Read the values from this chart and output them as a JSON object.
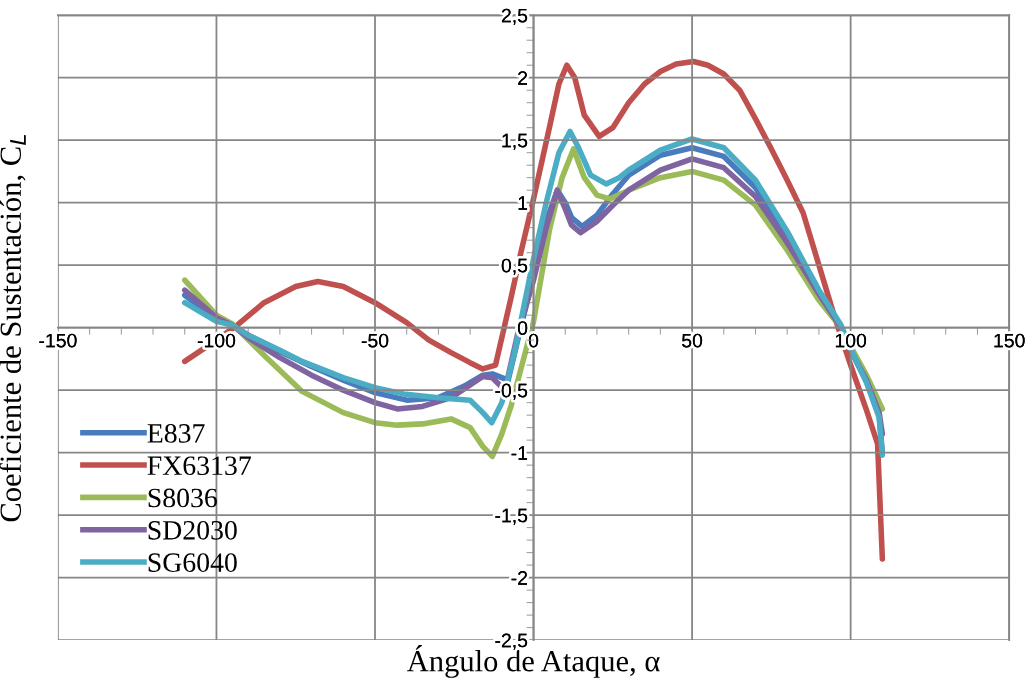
{
  "chart_data": {
    "type": "line",
    "xlabel": "Ángulo de Ataque, α",
    "ylabel": "Coeficiente de Sustentación, C$_{L}$",
    "xlim": [
      -150,
      150
    ],
    "xticks": [
      -150,
      -100,
      -50,
      0,
      50,
      100,
      150
    ],
    "ylim": [
      -2.5,
      2.5
    ],
    "yticks": [
      {
        "value": -2.5,
        "label": "-2,5"
      },
      {
        "value": -2,
        "label": "-2"
      },
      {
        "value": -1.5,
        "label": "-1,5"
      },
      {
        "value": -1,
        "label": "-1"
      },
      {
        "value": -0.5,
        "label": "-0,5"
      },
      {
        "value": 0,
        "label": "0"
      },
      {
        "value": 0.5,
        "label": "0,5"
      },
      {
        "value": 1,
        "label": "1"
      },
      {
        "value": 1.5,
        "label": "1,5"
      },
      {
        "value": 2,
        "label": "2"
      },
      {
        "value": 2.5,
        "label": "2,5"
      }
    ],
    "grid": true,
    "legend": "lower left",
    "line_style": "solid",
    "series": [
      {
        "name": "E837",
        "color": "#4a7bbd",
        "x": [
          -110,
          -100,
          -95,
          -90,
          -80,
          -70,
          -60,
          -50,
          -40,
          -30,
          -22,
          -16,
          -13,
          -8,
          -5,
          0,
          4,
          7.5,
          10,
          12,
          15.3,
          20,
          25,
          30,
          40,
          50,
          60,
          70,
          80,
          90,
          97,
          100,
          105,
          109,
          110
        ],
        "values": [
          0.26,
          0.07,
          0.02,
          -0.06,
          -0.19,
          -0.31,
          -0.42,
          -0.52,
          -0.58,
          -0.56,
          -0.47,
          -0.38,
          -0.37,
          -0.42,
          -0.1,
          0.42,
          0.85,
          1.1,
          1.0,
          0.88,
          0.81,
          0.9,
          1.07,
          1.22,
          1.38,
          1.44,
          1.37,
          1.12,
          0.72,
          0.28,
          0.0,
          -0.18,
          -0.43,
          -0.7,
          -1.0
        ]
      },
      {
        "name": "FX63137",
        "color": "#c0504d",
        "x": [
          -110,
          -100,
          -93,
          -85,
          -75,
          -68,
          -60,
          -50,
          -40,
          -33,
          -26,
          -20,
          -16,
          -12,
          -10,
          -7,
          -4,
          0,
          5,
          8,
          10.5,
          13,
          16,
          20.7,
          25,
          30,
          35,
          40,
          45,
          50.5,
          55,
          60,
          65,
          70,
          75,
          80,
          85,
          90,
          95,
          100,
          105,
          108.5,
          110
        ],
        "values": [
          -0.27,
          -0.1,
          0.03,
          0.2,
          0.33,
          0.37,
          0.33,
          0.2,
          0.04,
          -0.1,
          -0.2,
          -0.28,
          -0.33,
          -0.3,
          -0.08,
          0.25,
          0.6,
          1.03,
          1.6,
          1.95,
          2.1,
          2.0,
          1.7,
          1.53,
          1.6,
          1.8,
          1.95,
          2.05,
          2.11,
          2.13,
          2.1,
          2.03,
          1.9,
          1.67,
          1.43,
          1.18,
          0.92,
          0.5,
          0.08,
          -0.3,
          -0.66,
          -0.93,
          -1.85
        ]
      },
      {
        "name": "S8036",
        "color": "#9bbb59",
        "x": [
          -110,
          -100,
          -95,
          -85,
          -73,
          -60,
          -50,
          -43,
          -35,
          -26,
          -20,
          -16,
          -13,
          -10,
          -7,
          -2,
          0,
          5,
          9,
          12.6,
          16,
          20,
          24,
          30,
          40,
          50,
          60,
          70,
          80,
          90,
          97,
          100,
          105,
          110
        ],
        "values": [
          0.38,
          0.1,
          0.03,
          -0.22,
          -0.51,
          -0.68,
          -0.76,
          -0.78,
          -0.77,
          -0.73,
          -0.8,
          -0.95,
          -1.03,
          -0.85,
          -0.62,
          -0.14,
          0.05,
          0.78,
          1.2,
          1.43,
          1.2,
          1.06,
          1.03,
          1.1,
          1.2,
          1.25,
          1.18,
          0.98,
          0.62,
          0.22,
          0.0,
          -0.15,
          -0.38,
          -0.65
        ]
      },
      {
        "name": "SD2030",
        "color": "#8064a2",
        "x": [
          -110,
          -100,
          -95,
          -90,
          -80,
          -70,
          -60,
          -50,
          -43,
          -35,
          -26,
          -16,
          -13,
          -9,
          -5,
          0,
          4,
          7.5,
          10,
          12,
          14.8,
          20,
          25,
          30,
          40,
          50,
          60,
          70,
          80,
          90,
          97,
          100,
          105,
          109,
          110
        ],
        "values": [
          0.3,
          0.08,
          0.02,
          -0.08,
          -0.24,
          -0.38,
          -0.5,
          -0.6,
          -0.65,
          -0.63,
          -0.56,
          -0.39,
          -0.4,
          -0.5,
          -0.05,
          0.38,
          0.8,
          1.1,
          0.95,
          0.82,
          0.76,
          0.85,
          0.98,
          1.1,
          1.26,
          1.35,
          1.28,
          1.05,
          0.68,
          0.27,
          0.0,
          -0.18,
          -0.42,
          -0.68,
          -0.85
        ]
      },
      {
        "name": "SG6040",
        "color": "#4bacc6",
        "x": [
          -110,
          -100,
          -95,
          -90,
          -80,
          -73,
          -60,
          -50,
          -41,
          -30,
          -20,
          -16,
          -13.2,
          -10,
          -6,
          -4,
          0,
          4,
          8,
          11.5,
          14,
          18,
          22.9,
          27,
          30,
          40,
          50,
          60,
          70,
          80,
          90,
          97,
          100,
          105,
          109,
          110
        ],
        "values": [
          0.2,
          0.05,
          0.02,
          -0.06,
          -0.18,
          -0.27,
          -0.4,
          -0.48,
          -0.53,
          -0.56,
          -0.58,
          -0.68,
          -0.76,
          -0.6,
          -0.2,
          0.05,
          0.55,
          1.0,
          1.4,
          1.57,
          1.45,
          1.22,
          1.15,
          1.2,
          1.26,
          1.42,
          1.51,
          1.44,
          1.18,
          0.77,
          0.3,
          0.02,
          -0.17,
          -0.44,
          -0.72,
          -1.02
        ]
      }
    ]
  }
}
